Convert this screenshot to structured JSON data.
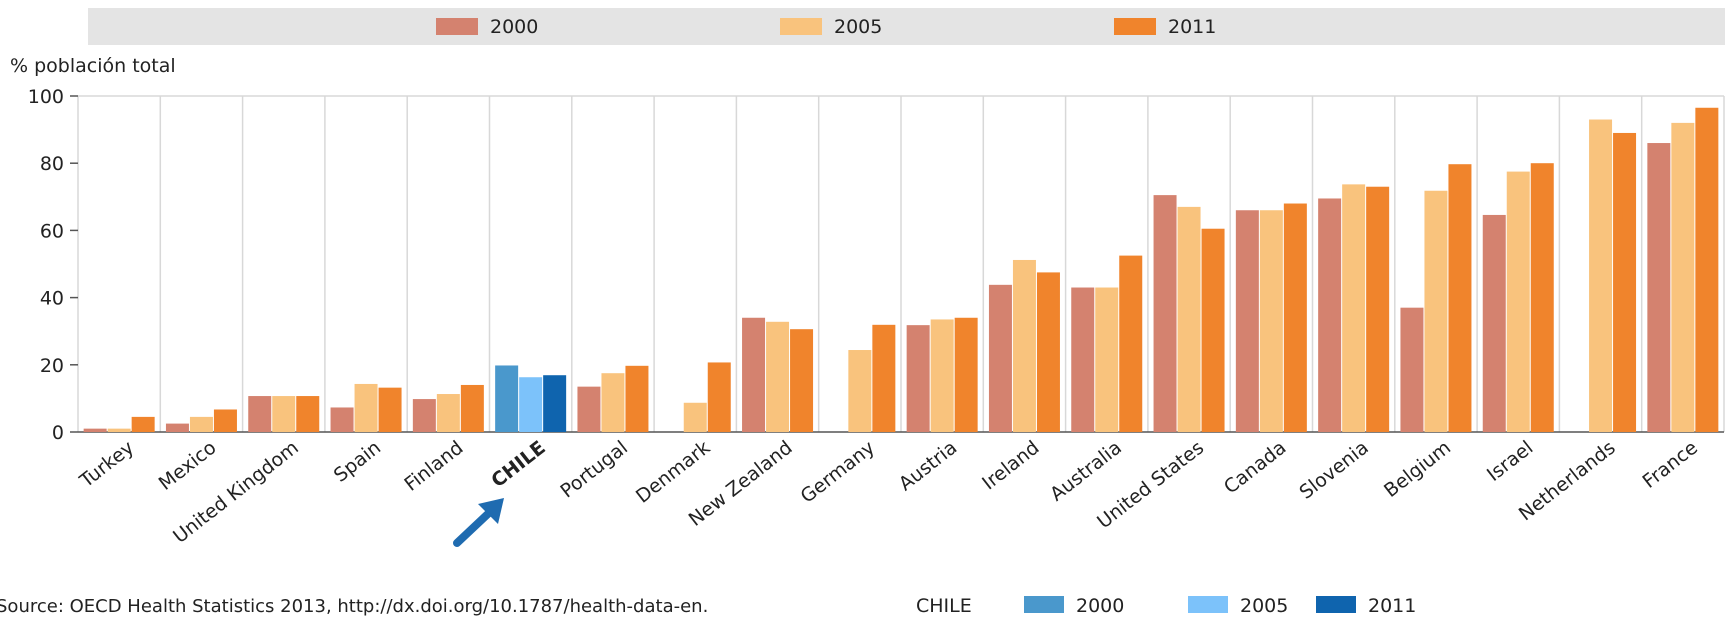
{
  "chart_data": {
    "type": "bar",
    "ylabel": "% población total",
    "ylim": [
      0,
      100
    ],
    "yticks": [
      0,
      20,
      40,
      60,
      80,
      100
    ],
    "grid": "vertical separators",
    "legend_position": "top",
    "categories": [
      "Turkey",
      "Mexico",
      "United Kingdom",
      "Spain",
      "Finland",
      "CHILE",
      "Portugal",
      "Denmark",
      "New Zealand",
      "Germany",
      "Austria",
      "Ireland",
      "Australia",
      "United States",
      "Canada",
      "Slovenia",
      "Belgium",
      "Israel",
      "Netherlands",
      "France"
    ],
    "highlight_category": "CHILE",
    "series": [
      {
        "name": "2000",
        "color": "#D4826F",
        "highlight_color": "#4A98CC",
        "values": [
          1,
          2.5,
          10.7,
          7.3,
          9.8,
          19.8,
          13.5,
          null,
          34,
          null,
          31.8,
          43.8,
          43,
          70.5,
          66,
          69.5,
          37,
          64.6,
          null,
          86
        ]
      },
      {
        "name": "2005",
        "color": "#F9C37D",
        "highlight_color": "#7CC2FA",
        "values": [
          1,
          4.5,
          10.7,
          14.3,
          11.3,
          16.3,
          17.5,
          8.7,
          32.8,
          24.4,
          33.5,
          51.2,
          43,
          67,
          66,
          73.7,
          71.8,
          77.5,
          93,
          92
        ]
      },
      {
        "name": "2011",
        "color": "#F0842C",
        "highlight_color": "#0F64AE",
        "values": [
          4.5,
          6.7,
          10.7,
          13.2,
          14,
          16.9,
          19.7,
          20.7,
          30.6,
          31.9,
          34,
          47.5,
          52.5,
          60.5,
          68,
          73,
          79.7,
          80,
          89,
          96.5
        ]
      }
    ],
    "inset_legend": {
      "label": "CHILE",
      "items": [
        "2000",
        "2005",
        "2011"
      ]
    },
    "source": "Source:  OECD Health Statistics 2013, http://dx.doi.org/10.1787/health-data-en."
  }
}
